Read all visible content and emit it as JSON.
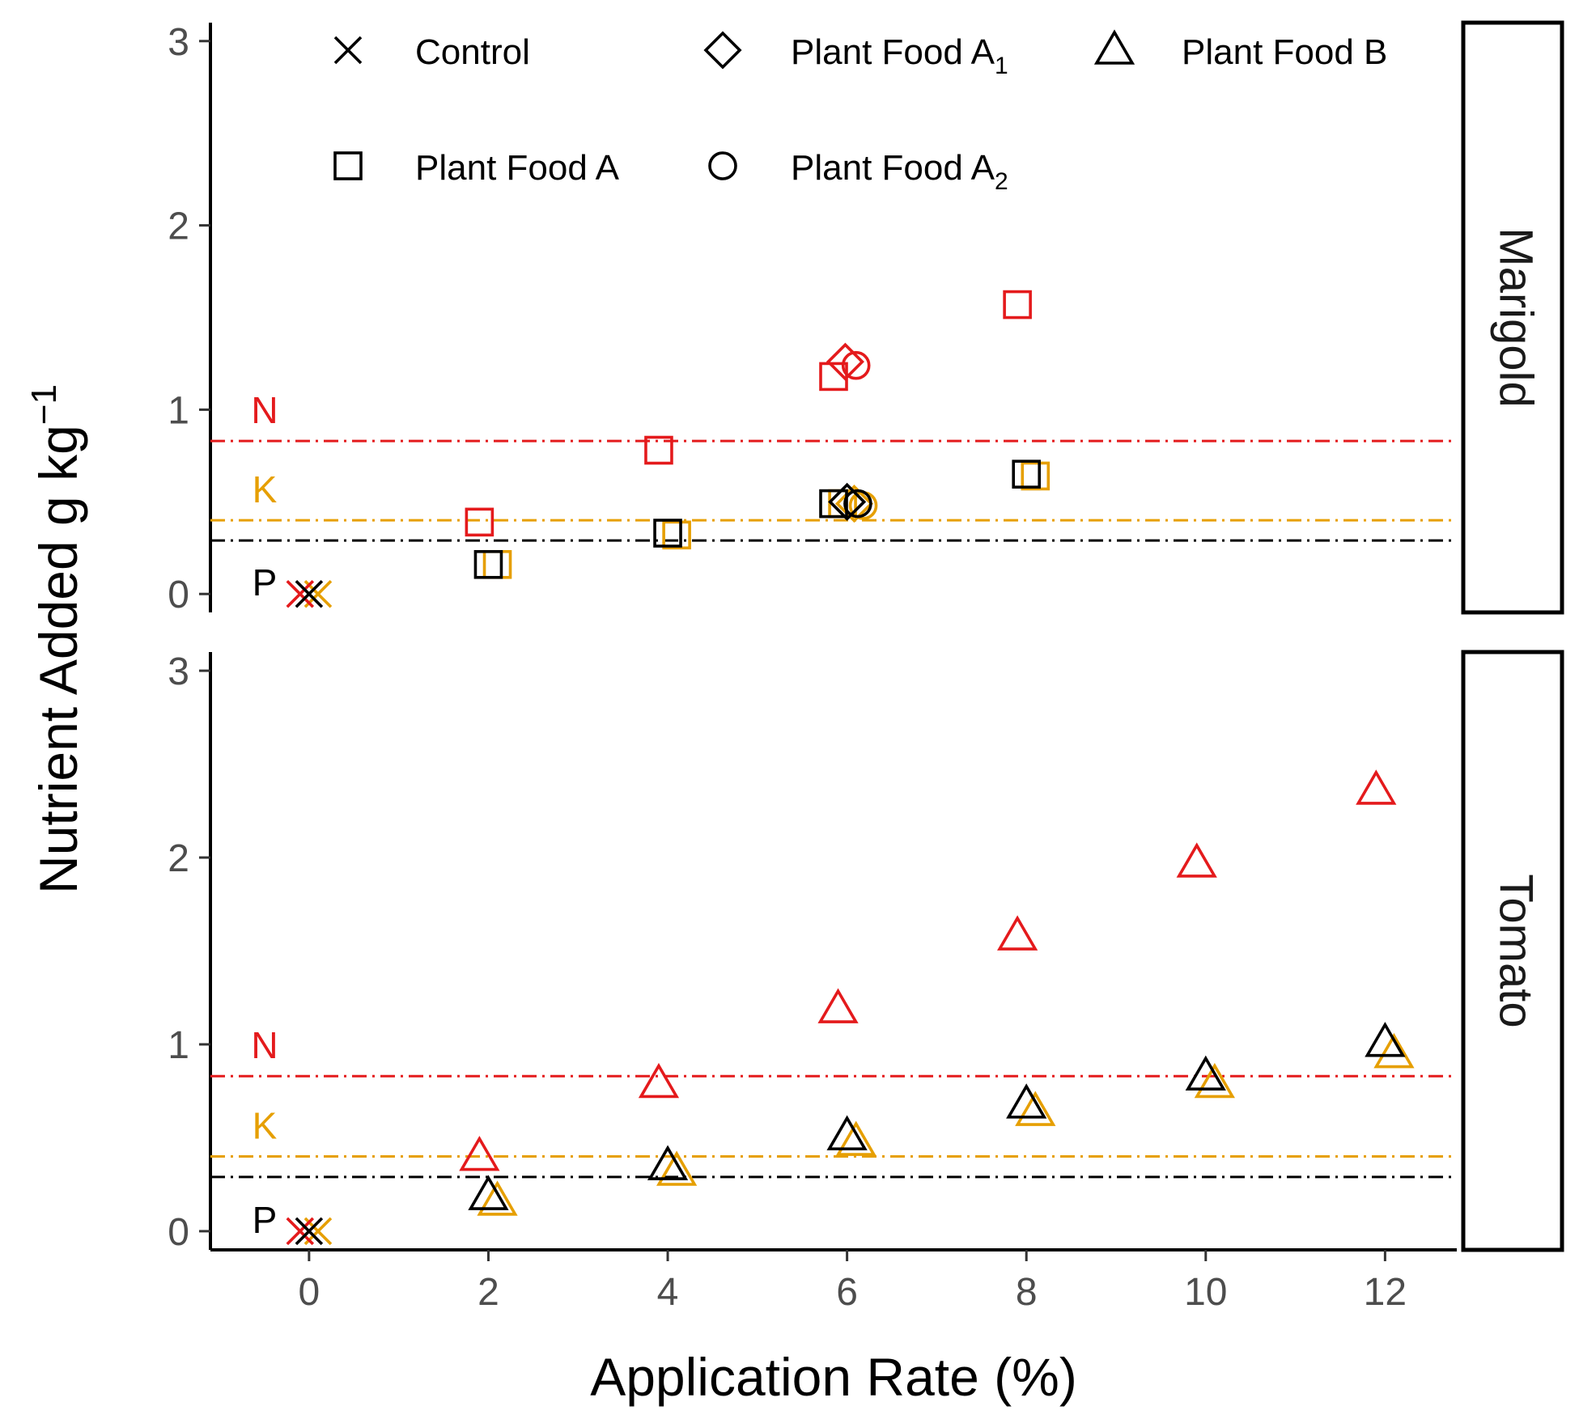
{
  "chart_data": {
    "type": "scatter",
    "xlabel": "Application Rate (%)",
    "ylabel": "Nutrient Added g kg",
    "ylabel_sup": "−1",
    "xlim": [
      -1.1,
      12.8
    ],
    "ylim": [
      -0.1,
      3.1
    ],
    "x_ticks": [
      0,
      2,
      4,
      6,
      8,
      10,
      12
    ],
    "y_ticks": [
      0,
      1,
      2,
      3
    ],
    "grid": false,
    "legend": {
      "placement": "top",
      "entries": [
        {
          "name": "Control",
          "sub": "",
          "shape": "cross"
        },
        {
          "name": "Plant Food A",
          "sub": "1",
          "shape": "diamond"
        },
        {
          "name": "Plant Food B",
          "sub": "",
          "shape": "triangle"
        },
        {
          "name": "Plant Food A",
          "sub": "",
          "shape": "square"
        },
        {
          "name": "Plant Food A",
          "sub": "2",
          "shape": "circle"
        }
      ]
    },
    "nutrient_colors": {
      "N": "#e41a1c",
      "K": "#e69f00",
      "P": "#000000"
    },
    "reference_lines": [
      {
        "label": "N",
        "y": 0.83,
        "color": "#e41a1c"
      },
      {
        "label": "K",
        "y": 0.4,
        "color": "#e69f00"
      },
      {
        "label": "P",
        "y": 0.29,
        "color": "#000000"
      }
    ],
    "panels": [
      {
        "strip": "Marigold",
        "points": [
          {
            "shape": "cross",
            "nutrient": "N",
            "x": -0.1,
            "y": 0.0
          },
          {
            "shape": "cross",
            "nutrient": "K",
            "x": 0.1,
            "y": 0.0
          },
          {
            "shape": "cross",
            "nutrient": "P",
            "x": 0.0,
            "y": 0.0
          },
          {
            "shape": "square",
            "nutrient": "N",
            "x": 1.9,
            "y": 0.39
          },
          {
            "shape": "square",
            "nutrient": "K",
            "x": 2.1,
            "y": 0.16
          },
          {
            "shape": "square",
            "nutrient": "P",
            "x": 2.0,
            "y": 0.16
          },
          {
            "shape": "square",
            "nutrient": "N",
            "x": 3.9,
            "y": 0.78
          },
          {
            "shape": "square",
            "nutrient": "K",
            "x": 4.1,
            "y": 0.32
          },
          {
            "shape": "square",
            "nutrient": "P",
            "x": 4.0,
            "y": 0.33
          },
          {
            "shape": "square",
            "nutrient": "N",
            "x": 5.85,
            "y": 1.18
          },
          {
            "shape": "square",
            "nutrient": "K",
            "x": 5.95,
            "y": 0.49
          },
          {
            "shape": "square",
            "nutrient": "P",
            "x": 5.85,
            "y": 0.49
          },
          {
            "shape": "diamond",
            "nutrient": "N",
            "x": 5.98,
            "y": 1.26
          },
          {
            "shape": "diamond",
            "nutrient": "K",
            "x": 6.08,
            "y": 0.49
          },
          {
            "shape": "diamond",
            "nutrient": "P",
            "x": 6.0,
            "y": 0.5
          },
          {
            "shape": "circle",
            "nutrient": "N",
            "x": 6.1,
            "y": 1.24
          },
          {
            "shape": "circle",
            "nutrient": "K",
            "x": 6.18,
            "y": 0.48
          },
          {
            "shape": "circle",
            "nutrient": "P",
            "x": 6.12,
            "y": 0.49
          },
          {
            "shape": "square",
            "nutrient": "N",
            "x": 7.9,
            "y": 1.57
          },
          {
            "shape": "square",
            "nutrient": "K",
            "x": 8.1,
            "y": 0.64
          },
          {
            "shape": "square",
            "nutrient": "P",
            "x": 8.0,
            "y": 0.65
          }
        ]
      },
      {
        "strip": "Tomato",
        "points": [
          {
            "shape": "cross",
            "nutrient": "N",
            "x": -0.1,
            "y": 0.0
          },
          {
            "shape": "cross",
            "nutrient": "K",
            "x": 0.1,
            "y": 0.0
          },
          {
            "shape": "cross",
            "nutrient": "P",
            "x": 0.0,
            "y": 0.0
          },
          {
            "shape": "triangle",
            "nutrient": "N",
            "x": 1.9,
            "y": 0.4
          },
          {
            "shape": "triangle",
            "nutrient": "K",
            "x": 2.1,
            "y": 0.16
          },
          {
            "shape": "triangle",
            "nutrient": "P",
            "x": 2.0,
            "y": 0.19
          },
          {
            "shape": "triangle",
            "nutrient": "N",
            "x": 3.9,
            "y": 0.79
          },
          {
            "shape": "triangle",
            "nutrient": "K",
            "x": 4.1,
            "y": 0.32
          },
          {
            "shape": "triangle",
            "nutrient": "P",
            "x": 4.0,
            "y": 0.35
          },
          {
            "shape": "triangle",
            "nutrient": "N",
            "x": 5.9,
            "y": 1.19
          },
          {
            "shape": "triangle",
            "nutrient": "K",
            "x": 6.1,
            "y": 0.48
          },
          {
            "shape": "triangle",
            "nutrient": "P",
            "x": 6.0,
            "y": 0.51
          },
          {
            "shape": "triangle",
            "nutrient": "N",
            "x": 7.9,
            "y": 1.58
          },
          {
            "shape": "triangle",
            "nutrient": "K",
            "x": 8.1,
            "y": 0.64
          },
          {
            "shape": "triangle",
            "nutrient": "P",
            "x": 8.0,
            "y": 0.68
          },
          {
            "shape": "triangle",
            "nutrient": "N",
            "x": 9.9,
            "y": 1.97
          },
          {
            "shape": "triangle",
            "nutrient": "K",
            "x": 10.1,
            "y": 0.79
          },
          {
            "shape": "triangle",
            "nutrient": "P",
            "x": 10.0,
            "y": 0.83
          },
          {
            "shape": "triangle",
            "nutrient": "N",
            "x": 11.9,
            "y": 2.36
          },
          {
            "shape": "triangle",
            "nutrient": "K",
            "x": 12.1,
            "y": 0.95
          },
          {
            "shape": "triangle",
            "nutrient": "P",
            "x": 12.0,
            "y": 1.01
          }
        ]
      }
    ]
  }
}
